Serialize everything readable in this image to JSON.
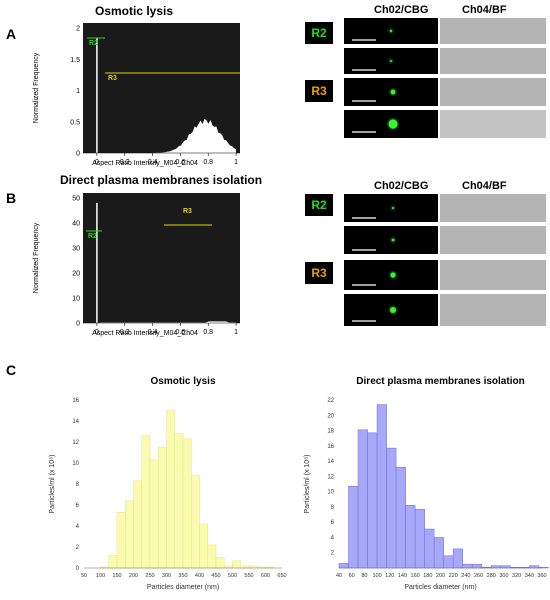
{
  "panel_letters": {
    "a": "A",
    "b": "B",
    "c": "C"
  },
  "panel_a": {
    "title": "Osmotic lysis",
    "hist": {
      "ylabel": "Normalized Frequency",
      "xlabel": "Aspect Ratio Intensity_M04_Ch04",
      "xticks": [
        "0",
        "0.2",
        "0.4",
        "0.6",
        "0.8",
        "1"
      ],
      "yticks": [
        "0",
        "0.5",
        "1",
        "1.5",
        "2"
      ],
      "gates": [
        {
          "label": "R2",
          "color": "#22dd22"
        },
        {
          "label": "R3",
          "color": "#e8d000"
        }
      ]
    },
    "image_header": {
      "ch02": "Ch02/CBG",
      "ch04": "Ch04/BF"
    },
    "region_labels": {
      "r2": "R2",
      "r3": "R3"
    }
  },
  "panel_b": {
    "title": "Direct plasma membranes isolation",
    "hist": {
      "ylabel": "Normalized Frequency",
      "xlabel": "Aspect Ratio Intensity_M04_Ch04",
      "xticks": [
        "0",
        "0.2",
        "0.4",
        "0.6",
        "0.8",
        "1"
      ],
      "yticks": [
        "0",
        "10",
        "20",
        "30",
        "40",
        "50"
      ],
      "gates": [
        {
          "label": "R2",
          "color": "#22dd22"
        },
        {
          "label": "R3",
          "color": "#e8d000"
        }
      ]
    },
    "image_header": {
      "ch02": "Ch02/CBG",
      "ch04": "Ch04/BF"
    },
    "region_labels": {
      "r2": "R2",
      "r3": "R3"
    }
  },
  "chart_data": [
    {
      "type": "bar",
      "title": "Osmotic lysis",
      "xlabel": "Particles diameter (nm)",
      "ylabel": "Particles/ml (x 10⁸)",
      "ylim": [
        0,
        16
      ],
      "yticks": [
        0,
        2,
        4,
        6,
        8,
        10,
        12,
        14,
        16
      ],
      "xticks": [
        50,
        100,
        150,
        200,
        250,
        300,
        350,
        400,
        450,
        500,
        550,
        600,
        650
      ],
      "bin_width": 25,
      "color": "#fafab0",
      "stroke": "#e6e680",
      "x": [
        100,
        125,
        150,
        175,
        200,
        225,
        250,
        275,
        300,
        325,
        350,
        375,
        400,
        425,
        450,
        475,
        500,
        525,
        550,
        575,
        600
      ],
      "values": [
        0.1,
        1.2,
        5.3,
        6.4,
        8.3,
        12.6,
        10.3,
        11.5,
        15.0,
        12.8,
        12.3,
        8.8,
        4.2,
        2.2,
        1.0,
        0.2,
        0.7,
        0.2,
        0.2,
        0.1,
        0.1
      ]
    },
    {
      "type": "bar",
      "title": "Direct plasma membranes isolation",
      "xlabel": "Particles diameter (nm)",
      "ylabel": "Particles/ml (x 10⁸)",
      "ylim": [
        0,
        22
      ],
      "yticks": [
        2,
        4,
        6,
        8,
        10,
        12,
        14,
        16,
        18,
        20,
        22
      ],
      "xticks": [
        40,
        60,
        80,
        100,
        120,
        140,
        160,
        180,
        200,
        220,
        240,
        260,
        280,
        300,
        320,
        340,
        360
      ],
      "bin_width": 15,
      "color": "#a8a8f8",
      "stroke": "#6a6ae0",
      "x": [
        40,
        55,
        70,
        85,
        100,
        115,
        130,
        145,
        160,
        175,
        190,
        205,
        220,
        235,
        250,
        265,
        280,
        295,
        310,
        325,
        340,
        355
      ],
      "values": [
        0.6,
        10.7,
        18.1,
        17.7,
        21.4,
        15.7,
        13.2,
        8.2,
        7.7,
        5.1,
        4.0,
        1.6,
        2.5,
        0.5,
        0.5,
        0.1,
        0.3,
        0.3,
        0.1,
        0.1,
        0.3,
        0.1
      ]
    }
  ]
}
